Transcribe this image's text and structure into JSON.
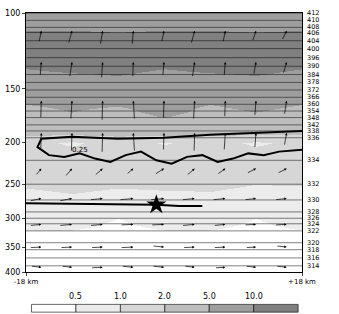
{
  "chart_data": {
    "type": "contour",
    "log": "y",
    "grid": false,
    "xlim": [
      -18,
      18
    ],
    "xticks": [
      {
        "value": -18,
        "label": "-18 km"
      },
      {
        "value": 18,
        "label": "+18 km"
      }
    ],
    "ylim": [
      400,
      100
    ],
    "yticks": [
      100,
      150,
      200,
      250,
      300,
      350,
      400
    ],
    "x": [
      -18,
      -12,
      -6,
      0,
      6,
      12,
      18
    ],
    "y": [
      100,
      115,
      130,
      150,
      170,
      185,
      200,
      215,
      240,
      270,
      300,
      340,
      400
    ],
    "z": [
      [
        6,
        6,
        7,
        6,
        6,
        7,
        6
      ],
      [
        12,
        12,
        11,
        12,
        12,
        11,
        12
      ],
      [
        11,
        12,
        12,
        11,
        12,
        12,
        11
      ],
      [
        7,
        7,
        8,
        7,
        7,
        8,
        7
      ],
      [
        4,
        5,
        4,
        6,
        4,
        5,
        4
      ],
      [
        2.5,
        3,
        2.5,
        3,
        2.5,
        3,
        2.5
      ],
      [
        1.5,
        0.8,
        1.6,
        0.9,
        1.5,
        0.8,
        1.4
      ],
      [
        1.5,
        1.6,
        1.4,
        1.7,
        1.5,
        1.6,
        1.5
      ],
      [
        1.2,
        1.3,
        1.2,
        1.3,
        1.2,
        1.1,
        1.2
      ],
      [
        0.8,
        0.9,
        0.8,
        0.8,
        0.9,
        0.8,
        0.7
      ],
      [
        0.6,
        0.6,
        0.5,
        0.6,
        0.6,
        0.5,
        0.6
      ],
      [
        0.4,
        0.4,
        0.4,
        0.4,
        0.4,
        0.4,
        0.4
      ],
      [
        0.3,
        0.3,
        0.3,
        0.3,
        0.3,
        0.3,
        0.3
      ]
    ],
    "colorbar": {
      "ticks": [
        0.5,
        {
          "value": 1,
          "label": "1.0"
        },
        {
          "value": 2,
          "label": "2.0"
        },
        {
          "value": 5,
          "label": "5.0"
        },
        {
          "value": 10,
          "label": "10.0"
        }
      ],
      "colors": [
        "#ffffff",
        "#ececec",
        "#d6d6d6",
        "#bdbdbd",
        "#9e9e9e",
        "#808080"
      ]
    },
    "isentropes": [
      {
        "theta": 412,
        "p": 100
      },
      {
        "theta": 410,
        "p": 104
      },
      {
        "theta": 408,
        "p": 108
      },
      {
        "theta": 406,
        "p": 111
      },
      {
        "theta": 404,
        "p": 116
      },
      {
        "theta": 400,
        "p": 121
      },
      {
        "theta": 396,
        "p": 127
      },
      {
        "theta": 390,
        "p": 133
      },
      {
        "theta": 384,
        "p": 139
      },
      {
        "theta": 378,
        "p": 145
      },
      {
        "theta": 372,
        "p": 151
      },
      {
        "theta": 366,
        "p": 157
      },
      {
        "theta": 360,
        "p": 163
      },
      {
        "theta": 354,
        "p": 169
      },
      {
        "theta": 348,
        "p": 175
      },
      {
        "theta": 342,
        "p": 182
      },
      {
        "theta": 338,
        "p": 188
      },
      {
        "theta": 336,
        "p": 195
      },
      {
        "theta": 334,
        "p": 220
      },
      {
        "theta": 332,
        "p": 250
      },
      {
        "theta": 330,
        "p": 272
      },
      {
        "theta": 328,
        "p": 290
      },
      {
        "theta": 326,
        "p": 300
      },
      {
        "theta": 324,
        "p": 309
      },
      {
        "theta": 322,
        "p": 321
      },
      {
        "theta": 320,
        "p": 342
      },
      {
        "theta": 318,
        "p": 355
      },
      {
        "theta": 316,
        "p": 371
      },
      {
        "theta": 314,
        "p": 387
      }
    ],
    "thick_contours": [
      {
        "x": [
          18,
          12,
          6,
          0,
          -6,
          -12,
          -16,
          -16.5,
          -15,
          -13,
          -11,
          -9,
          -7,
          -5,
          -3,
          -1,
          1,
          3,
          5,
          7,
          9,
          11,
          13,
          15,
          18
        ],
        "p": [
          188,
          190,
          192,
          195,
          196,
          194,
          196,
          205,
          214,
          216,
          212,
          218,
          222,
          214,
          210,
          220,
          224,
          216,
          214,
          222,
          218,
          212,
          214,
          210,
          208
        ]
      },
      {
        "x": [
          -18,
          -12,
          -6,
          -1,
          2,
          5
        ],
        "p": [
          277,
          278,
          279,
          279,
          281,
          281
        ]
      }
    ],
    "annotations": [
      {
        "text": "0.25",
        "x": -11,
        "p": 208
      }
    ],
    "star": {
      "x": -1,
      "p": 279,
      "marker": "star"
    },
    "wind": {
      "x": [
        -16,
        -12,
        -8,
        -4,
        0,
        4,
        8,
        12,
        16
      ],
      "p": [
        110,
        130,
        160,
        190,
        230,
        270,
        310,
        350,
        390
      ],
      "u": [
        [
          0.2,
          0.3,
          0.2,
          0.1,
          0.2,
          0.3,
          0.2,
          0.3,
          0.4
        ],
        [
          0.1,
          0.2,
          0.1,
          0.05,
          0.1,
          0.2,
          0.1,
          0.2,
          0.3
        ],
        [
          0.05,
          0.1,
          0.05,
          -0.1,
          0.05,
          0.1,
          0.05,
          0.1,
          0.2
        ],
        [
          0.05,
          0.05,
          0.05,
          -0.1,
          0.05,
          0.05,
          0.1,
          0.1,
          0.2
        ],
        [
          0.5,
          0.6,
          0.7,
          0.6,
          0.8,
          0.7,
          0.7,
          0.8,
          0.8
        ],
        [
          1.0,
          1.1,
          1.1,
          1.2,
          1.2,
          1.1,
          1.1,
          1.0,
          1.0
        ],
        [
          1.0,
          1.1,
          1.1,
          1.1,
          1.1,
          1.1,
          1.0,
          1.0,
          1.0
        ],
        [
          1.0,
          1.0,
          1.0,
          1.1,
          1.0,
          1.0,
          1.0,
          0.9,
          0.9
        ],
        [
          0.9,
          0.9,
          1.0,
          1.0,
          1.0,
          0.9,
          0.9,
          0.9,
          0.9
        ]
      ],
      "w": [
        [
          1.0,
          1.1,
          1.2,
          1.2,
          1.0,
          1.1,
          1.0,
          0.9,
          0.8
        ],
        [
          1.2,
          1.3,
          1.4,
          1.3,
          1.2,
          1.3,
          1.2,
          1.1,
          1.0
        ],
        [
          1.5,
          1.6,
          1.7,
          1.6,
          1.5,
          1.6,
          1.4,
          1.3,
          1.2
        ],
        [
          1.4,
          1.6,
          1.7,
          1.6,
          1.5,
          1.6,
          1.5,
          1.3,
          1.1
        ],
        [
          0.6,
          0.7,
          0.6,
          0.5,
          0.5,
          0.6,
          0.5,
          0.4,
          0.4
        ],
        [
          0.2,
          0.2,
          0.1,
          0.1,
          0.1,
          0.1,
          0.1,
          0.1,
          0.1
        ],
        [
          0.1,
          0.1,
          0.1,
          0.05,
          0.05,
          0.1,
          0.1,
          0.05,
          0.05
        ],
        [
          0.05,
          0.05,
          0.05,
          0.05,
          -0.1,
          0.05,
          0.05,
          0.05,
          -0.1
        ],
        [
          -0.1,
          -0.1,
          0.05,
          -0.1,
          -0.1,
          -0.1,
          0.05,
          -0.1,
          -0.1
        ]
      ]
    }
  }
}
